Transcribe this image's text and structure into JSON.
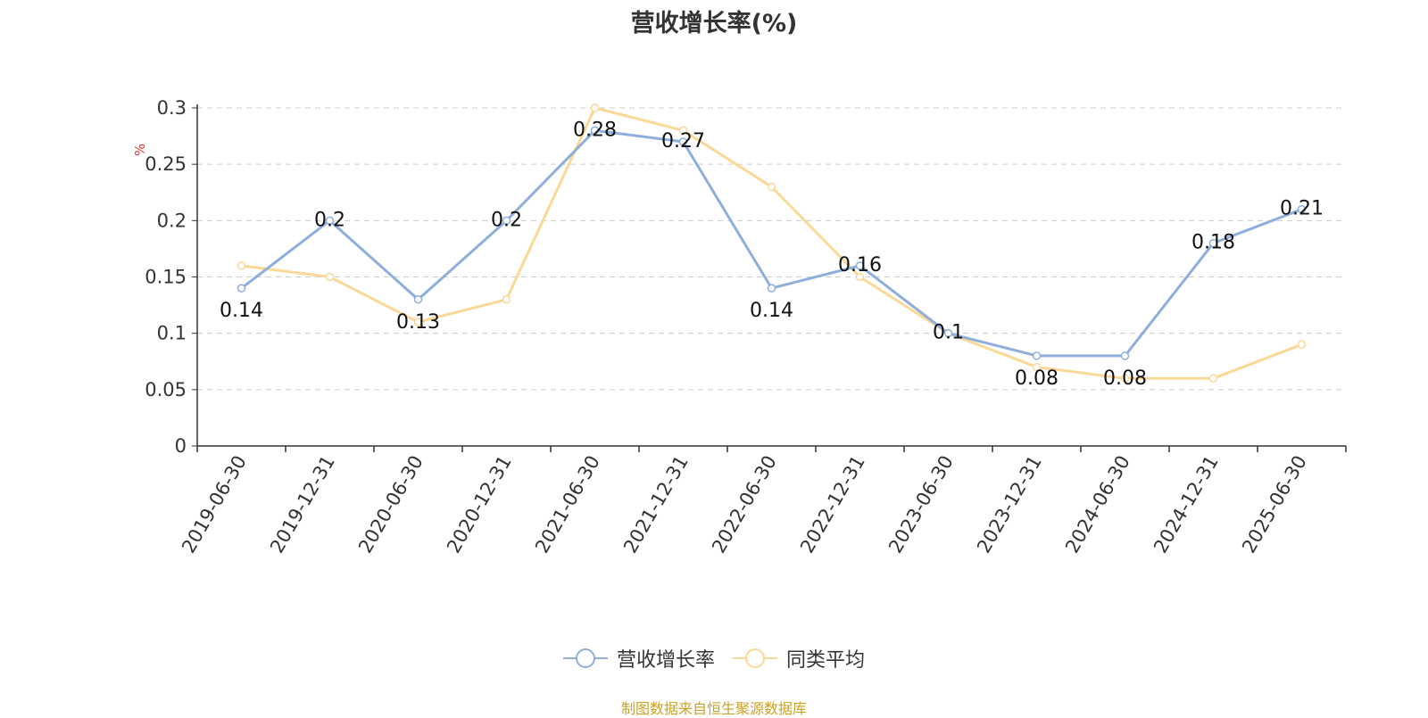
{
  "chart_data": {
    "type": "line",
    "title": "营收增长率(%)",
    "ylabel": "%",
    "xlabel": "",
    "ylim": [
      0,
      0.3
    ],
    "yticks": [
      "0",
      "0.05",
      "0.1",
      "0.15",
      "0.2",
      "0.25",
      "0.3"
    ],
    "categories": [
      "2019-06-30",
      "2019-12-31",
      "2020-06-30",
      "2020-12-31",
      "2021-06-30",
      "2021-12-31",
      "2022-06-30",
      "2022-12-31",
      "2023-06-30",
      "2023-12-31",
      "2024-06-30",
      "2024-12-31",
      "2025-06-30"
    ],
    "series": [
      {
        "name": "营收增长率",
        "color": "#8eaedb",
        "values": [
          0.14,
          0.2,
          0.13,
          0.2,
          0.28,
          0.27,
          0.14,
          0.16,
          0.1,
          0.08,
          0.08,
          0.18,
          0.21
        ],
        "labels": [
          "0.14",
          "0.2",
          "0.13",
          "0.2",
          "0.28",
          "0.27",
          "0.14",
          "0.16",
          "0.1",
          "0.08",
          "0.08",
          "0.18",
          "0.21"
        ]
      },
      {
        "name": "同类平均",
        "color": "#fbd896",
        "values": [
          0.16,
          0.15,
          0.11,
          0.13,
          0.3,
          0.28,
          0.23,
          0.15,
          0.1,
          0.07,
          0.06,
          0.06,
          0.09
        ]
      }
    ],
    "grid": true,
    "legend": "bottom-center"
  },
  "source_note": "制图数据来自恒生聚源数据库"
}
